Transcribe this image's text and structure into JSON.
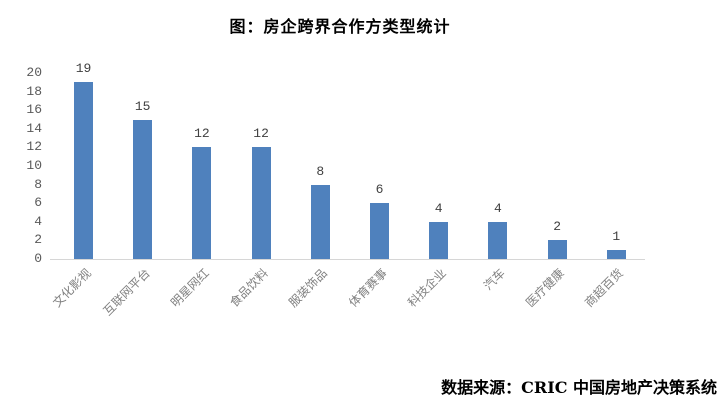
{
  "title": "图：房企跨界合作方类型统计",
  "source_note": "数据来源：CRIC 中国房地产决策系统",
  "colors": {
    "bar": "#4F81BD",
    "axis_line": "#D6D6D6",
    "ytick_label": "#595959",
    "value_label": "#404040",
    "category_label": "#808080",
    "title_text": "#000000",
    "background": "#FFFFFF"
  },
  "chart_data": {
    "type": "bar",
    "title": "图：房企跨界合作方类型统计",
    "source": "数据来源：CRIC 中国房地产决策系统",
    "categories": [
      "文化影视",
      "互联网平台",
      "明星网红",
      "食品饮料",
      "服装饰品",
      "体育赛事",
      "科技企业",
      "汽车",
      "医疗健康",
      "商超百货"
    ],
    "values": [
      19,
      15,
      12,
      12,
      8,
      6,
      4,
      4,
      2,
      1
    ],
    "xlabel": "",
    "ylabel": "",
    "ylim": [
      0,
      20
    ],
    "ytick_step": 2,
    "grid": false,
    "legend": "none",
    "bar_value_labels_shown": true,
    "category_label_rotation_deg": 45
  }
}
